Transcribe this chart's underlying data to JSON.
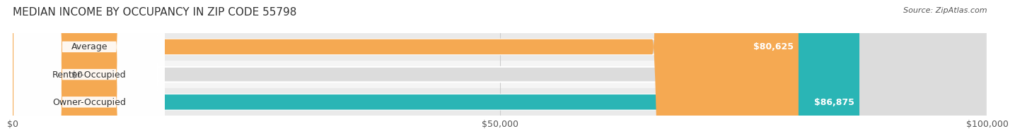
{
  "title": "MEDIAN INCOME BY OCCUPANCY IN ZIP CODE 55798",
  "source": "Source: ZipAtlas.com",
  "categories": [
    "Owner-Occupied",
    "Renter-Occupied",
    "Average"
  ],
  "values": [
    86875,
    0,
    80625
  ],
  "bar_colors": [
    "#2ab5b5",
    "#c9a8d4",
    "#f5a952"
  ],
  "bar_bg_color": "#f0f0f0",
  "value_labels": [
    "$86,875",
    "$0",
    "$80,625"
  ],
  "xlim": [
    0,
    100000
  ],
  "xticks": [
    0,
    50000,
    100000
  ],
  "xtick_labels": [
    "$0",
    "$50,000",
    "$100,000"
  ],
  "title_fontsize": 11,
  "source_fontsize": 8,
  "label_fontsize": 9,
  "bar_height": 0.55,
  "figsize": [
    14.06,
    1.96
  ],
  "dpi": 100,
  "bg_color": "#ffffff",
  "bar_row_bg": "#f5f5f5"
}
